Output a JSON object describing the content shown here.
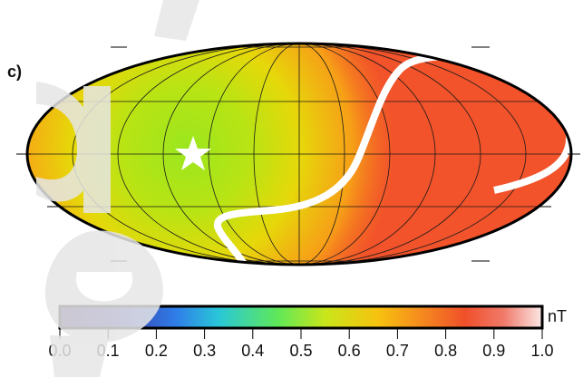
{
  "panel_label": "c)",
  "colorbar": {
    "unit": "nT",
    "range": [
      0,
      1.0
    ],
    "ticks": [
      {
        "value": 0,
        "label": "0.0"
      },
      0.1,
      0.2,
      0.3,
      0.4,
      0.5,
      0.6,
      0.7,
      0.8,
      0.9,
      {
        "value": 1.0,
        "label": "1.0"
      }
    ]
  }
}
